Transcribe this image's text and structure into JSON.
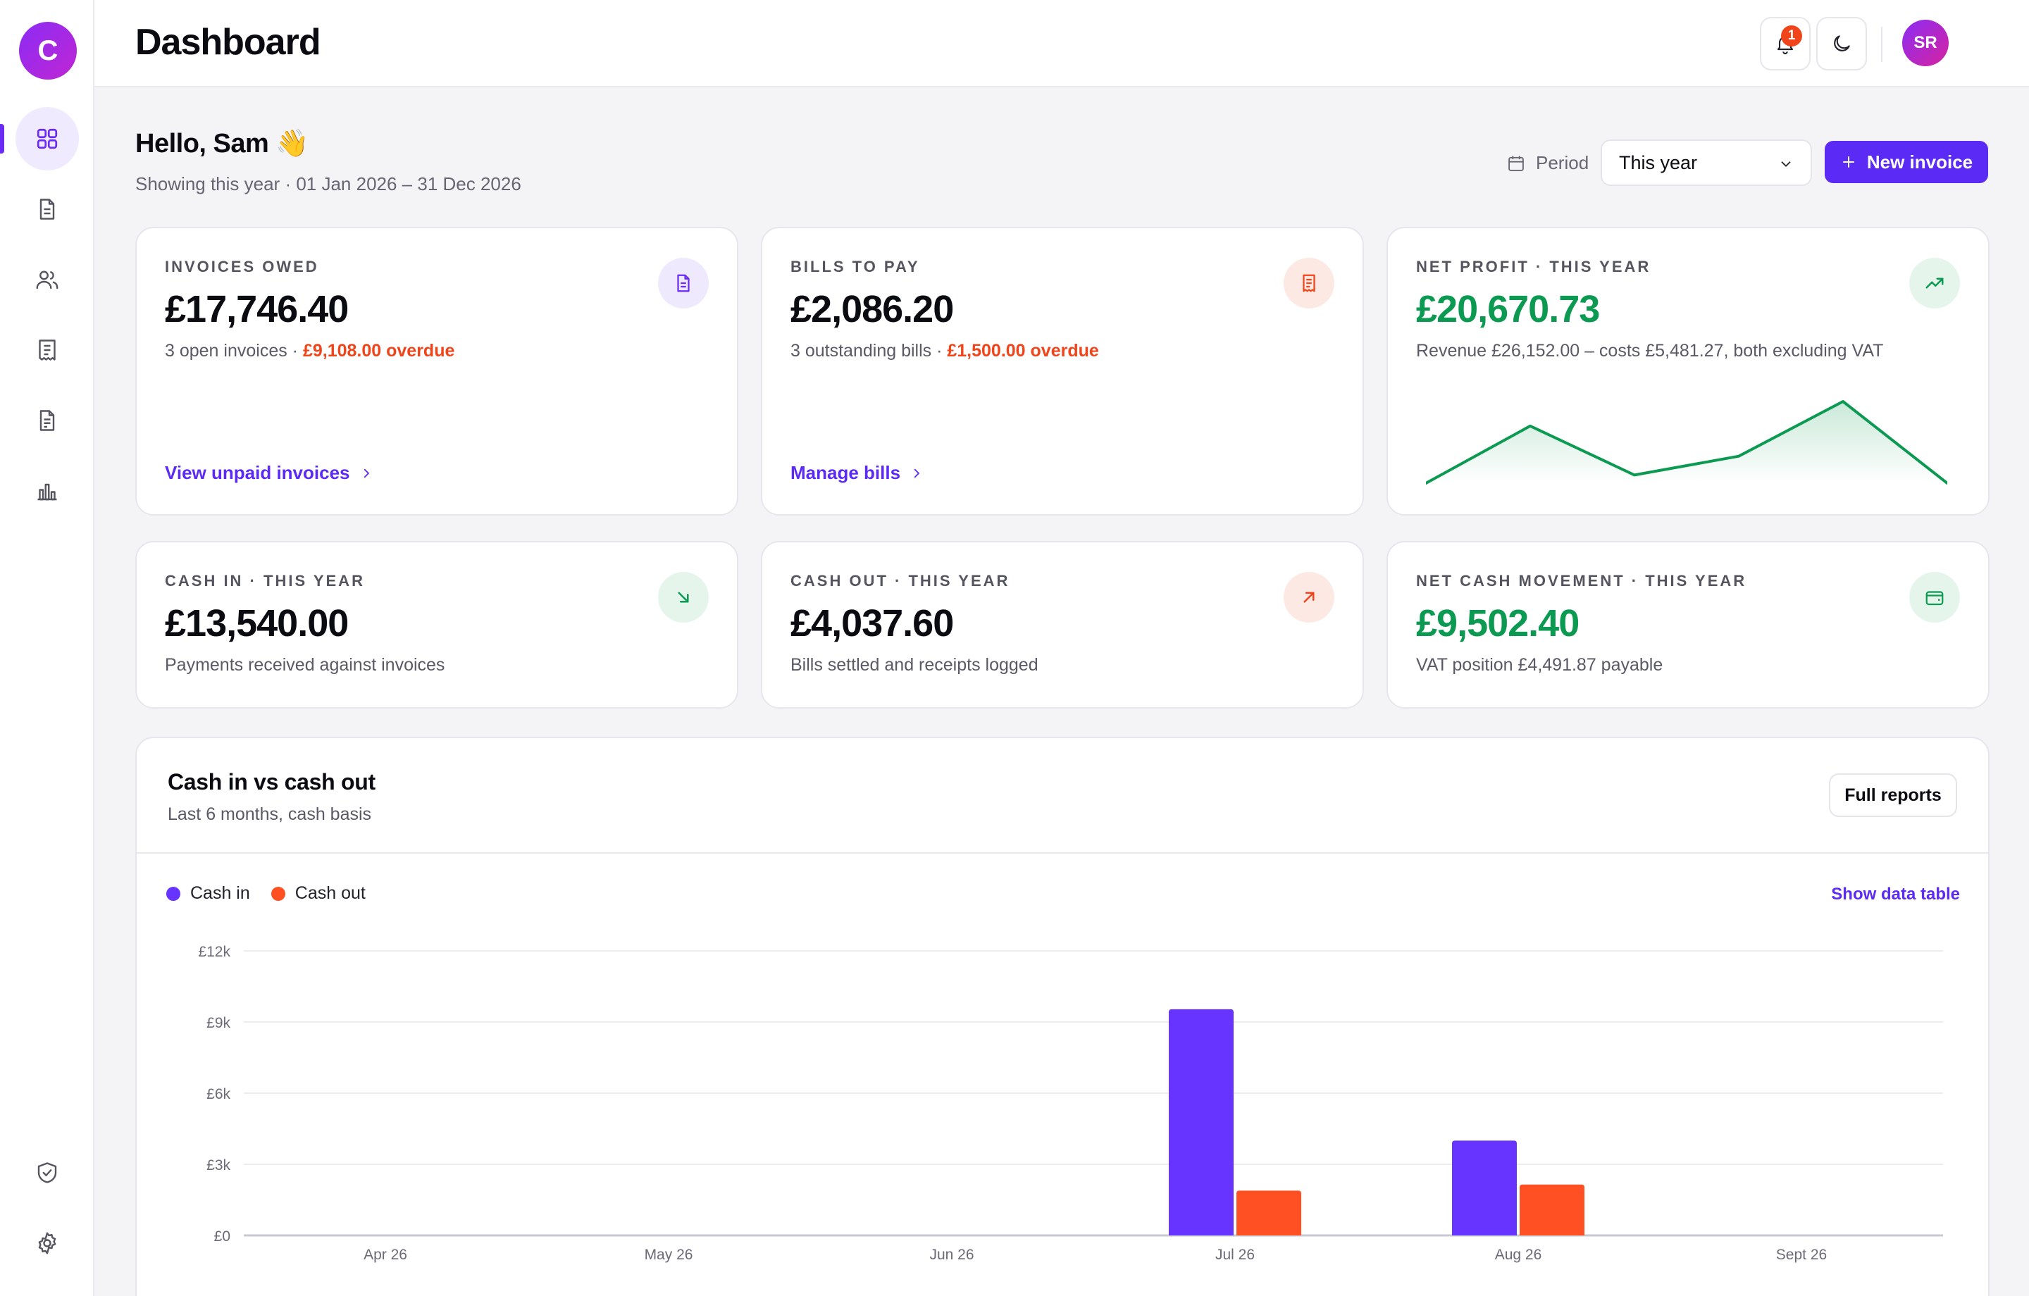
{
  "app": {
    "logo_letter": "C"
  },
  "sidebar": {
    "items": [
      {
        "name": "dashboard",
        "icon": "grid-icon",
        "active": true
      },
      {
        "name": "invoices",
        "icon": "document-icon"
      },
      {
        "name": "contacts",
        "icon": "users-icon"
      },
      {
        "name": "bills",
        "icon": "receipt-icon"
      },
      {
        "name": "reports-document",
        "icon": "report-icon"
      },
      {
        "name": "analytics",
        "icon": "bar-chart-icon"
      }
    ],
    "bottom_items": [
      {
        "name": "security",
        "icon": "shield-check-icon"
      },
      {
        "name": "settings",
        "icon": "gear-icon"
      }
    ]
  },
  "header": {
    "title": "Dashboard",
    "notification_count": "1",
    "user_initials": "SR"
  },
  "greeting": {
    "title": "Hello, Sam 👋",
    "subtitle": "Showing this year · 01 Jan 2026 – 31 Dec 2026"
  },
  "period": {
    "label": "Period",
    "selected": "This year"
  },
  "new_invoice_label": "New invoice",
  "cards": {
    "invoices_owed": {
      "label": "Invoices owed",
      "value": "£17,746.40",
      "sub_main": "3 open invoices · ",
      "sub_overdue": "£9,108.00 overdue",
      "link": "View unpaid invoices"
    },
    "bills_to_pay": {
      "label": "Bills to pay",
      "value": "£2,086.20",
      "sub_main": "3 outstanding bills · ",
      "sub_overdue": "£1,500.00 overdue",
      "link": "Manage bills"
    },
    "net_profit": {
      "label": "Net profit · This year",
      "value": "£20,670.73",
      "sub": "Revenue £26,152.00 – costs £5,481.27, both excluding VAT",
      "sparkline": [
        0.0,
        0.7,
        0.1,
        0.33,
        1.0,
        0.0
      ]
    },
    "cash_in": {
      "label": "Cash in · This year",
      "value": "£13,540.00",
      "sub": "Payments received against invoices"
    },
    "cash_out": {
      "label": "Cash out · This year",
      "value": "£4,037.60",
      "sub": "Bills settled and receipts logged"
    },
    "net_cash": {
      "label": "Net cash movement · This year",
      "value": "£9,502.40",
      "sub": "VAT position £4,491.87 payable"
    }
  },
  "colors": {
    "accent": "#5b2bf5",
    "cash_in": "#6633ff",
    "cash_out": "#ff5024",
    "positive": "#0c9a52",
    "overdue": "#f0441b"
  },
  "chart_card": {
    "title": "Cash in vs cash out",
    "subtitle": "Last 6 months, cash basis",
    "full_reports": "Full reports",
    "show_table": "Show data table"
  },
  "chart_data": {
    "type": "bar",
    "categories": [
      "Apr 26",
      "May 26",
      "Jun 26",
      "Jul 26",
      "Aug 26",
      "Sept 26"
    ],
    "series": [
      {
        "name": "Cash in",
        "values": [
          0,
          0,
          0,
          9540,
          4000,
          0
        ]
      },
      {
        "name": "Cash out",
        "values": [
          0,
          0,
          0,
          1890,
          2147.6,
          0
        ]
      }
    ],
    "ylim": [
      0,
      12000
    ],
    "yticks": [
      0,
      3000,
      6000,
      9000,
      12000
    ],
    "ytick_labels": [
      "£0",
      "£3k",
      "£6k",
      "£9k",
      "£12k"
    ],
    "grid": true,
    "legend": "top-left"
  }
}
